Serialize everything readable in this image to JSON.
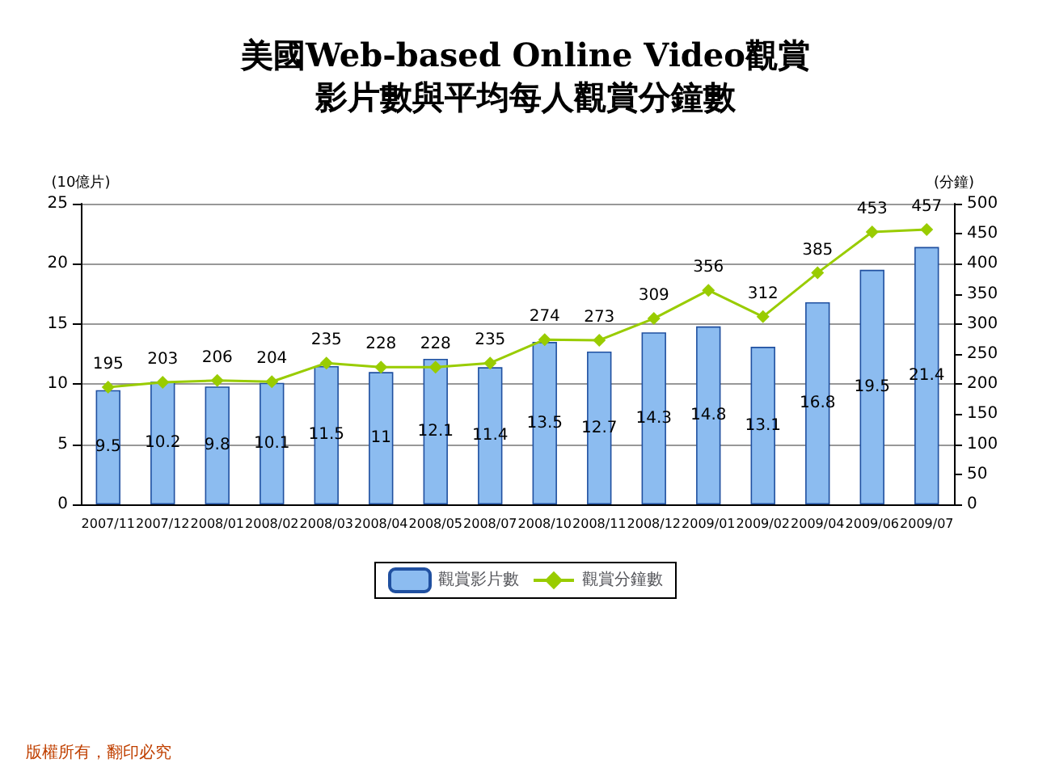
{
  "chart_data": {
    "type": "bar",
    "title": "美國Web-based Online Video觀賞影片數與平均每人觀賞分鐘數",
    "ylabel": "(10億片)",
    "y2label": "(分鐘)",
    "categories": [
      "2007/11",
      "2007/12",
      "2008/01",
      "2008/02",
      "2008/03",
      "2008/04",
      "2008/05",
      "2008/07",
      "2008/10",
      "2008/11",
      "2008/12",
      "2009/01",
      "2009/02",
      "2009/04",
      "2009/06",
      "2009/07"
    ],
    "series": [
      {
        "name": "觀賞影片數",
        "color": "#8cbcf0",
        "values": [
          9.5,
          10.2,
          9.8,
          10.1,
          11.5,
          11,
          12.1,
          11.4,
          13.5,
          12.7,
          14.3,
          14.8,
          13.1,
          16.8,
          19.5,
          21.4
        ]
      },
      {
        "name": "觀賞分鐘數",
        "type": "line",
        "axis": "y2",
        "color": "#99cc00",
        "marker": "diamond",
        "values": [
          195,
          203,
          206,
          204,
          235,
          228,
          228,
          235,
          274,
          273,
          309,
          356,
          312,
          385,
          453,
          457
        ]
      }
    ],
    "ylim": [
      0,
      25
    ],
    "yticks": [
      0,
      5,
      10,
      15,
      20,
      25
    ],
    "y2lim": [
      0,
      500
    ],
    "y2ticks": [
      0,
      50,
      100,
      150,
      200,
      250,
      300,
      350,
      400,
      450,
      500
    ],
    "grid": "y",
    "legend": "bottom",
    "data_labels": true,
    "annotations": [
      "版權所有，翻印必究"
    ]
  }
}
